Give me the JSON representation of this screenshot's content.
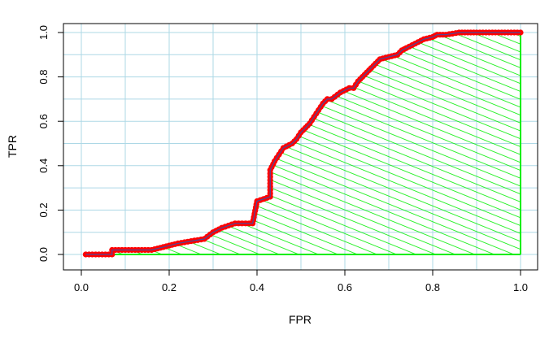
{
  "chart_data": {
    "type": "area",
    "xlabel": "FPR",
    "ylabel": "TPR",
    "xlim": [
      0.0,
      1.0
    ],
    "ylim": [
      0.0,
      1.0
    ],
    "xticks": [
      "0.0",
      "0.2",
      "0.4",
      "0.6",
      "0.8",
      "1.0"
    ],
    "yticks": [
      "0.0",
      "0.2",
      "0.4",
      "0.6",
      "0.8",
      "1.0"
    ],
    "grid": true,
    "legend": "none",
    "colors": {
      "line": "#ff0000",
      "line_core": "#4a4a9a",
      "fill_hatch": "#00ee00",
      "grid": "#add8e6"
    },
    "series": [
      {
        "x": [
          0.01,
          0.07,
          0.07,
          0.16,
          0.18,
          0.2,
          0.22,
          0.25,
          0.28,
          0.3,
          0.32,
          0.35,
          0.39,
          0.4,
          0.43,
          0.43,
          0.44,
          0.45,
          0.46,
          0.48,
          0.49,
          0.5,
          0.51,
          0.52,
          0.53,
          0.54,
          0.55,
          0.56,
          0.57,
          0.59,
          0.61,
          0.62,
          0.63,
          0.64,
          0.65,
          0.66,
          0.67,
          0.68,
          0.7,
          0.72,
          0.73,
          0.74,
          0.76,
          0.78,
          0.8,
          0.81,
          0.83,
          0.86,
          0.88,
          0.9,
          1.0
        ],
        "y": [
          0.0,
          0.0,
          0.02,
          0.02,
          0.03,
          0.04,
          0.05,
          0.06,
          0.07,
          0.1,
          0.12,
          0.14,
          0.14,
          0.24,
          0.26,
          0.38,
          0.42,
          0.45,
          0.48,
          0.5,
          0.52,
          0.55,
          0.57,
          0.59,
          0.62,
          0.65,
          0.68,
          0.7,
          0.7,
          0.73,
          0.75,
          0.75,
          0.78,
          0.8,
          0.82,
          0.84,
          0.86,
          0.88,
          0.89,
          0.9,
          0.92,
          0.93,
          0.95,
          0.97,
          0.98,
          0.99,
          0.99,
          1.0,
          1.0,
          1.0,
          1.0
        ]
      }
    ]
  }
}
